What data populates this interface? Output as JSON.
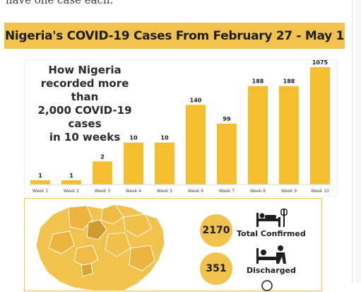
{
  "header": {
    "cut_text": "have one case each.",
    "title": "Nigeria's COVID-19 Cases From February 27 - May 1"
  },
  "chart_data": {
    "type": "bar",
    "title": "How Nigeria recorded more than 2,000 COVID-19 cases in 10 weeks",
    "title_lines": [
      "How Nigeria",
      "recorded more than",
      "2,000 COVID-19 cases",
      "in 10 weeks"
    ],
    "categories": [
      "Week 1",
      "Week 2",
      "Week 3",
      "Week 4",
      "Week 5",
      "Week 6",
      "Week 7",
      "Week 8",
      "Week 9",
      "Week 10"
    ],
    "values": [
      1,
      1,
      2,
      10,
      10,
      140,
      99,
      188,
      188,
      1075
    ],
    "xlabel": "",
    "ylabel": "",
    "bar_color": "#f5be2f",
    "grid": false,
    "legend": "none"
  },
  "stats": {
    "confirmed": {
      "value": "2170",
      "label": "Total Confirmed",
      "icon": "hospital-patient-icon"
    },
    "discharged": {
      "value": "351",
      "label": "Discharged",
      "icon": "discharged-patient-icon"
    }
  },
  "map": {
    "icon": "nigeria-states-map",
    "base_color": "#f2c24e",
    "dark_color": "#d19a2c"
  },
  "colors": {
    "accent": "#f2c24e",
    "bar": "#f5be2f",
    "text": "#1e1e1e"
  }
}
